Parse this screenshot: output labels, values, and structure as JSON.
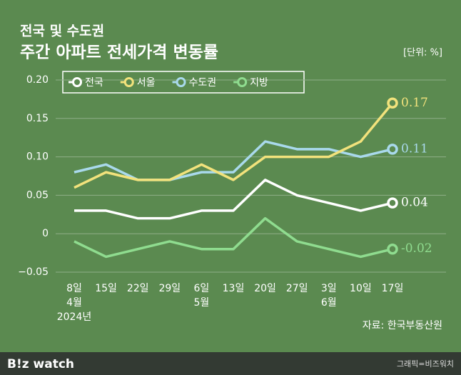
{
  "header": {
    "title_line1": "전국 및 수도권",
    "title_line2": "주간 아파트 전세가격 변동률",
    "unit": "[단위: %]"
  },
  "chart_data": {
    "type": "line",
    "categories": [
      [
        "8일",
        "4월",
        "2024년"
      ],
      [
        "15일"
      ],
      [
        "22일"
      ],
      [
        "29일"
      ],
      [
        "6일",
        "5월"
      ],
      [
        "13일"
      ],
      [
        "20일"
      ],
      [
        "27일"
      ],
      [
        "3일",
        "6월"
      ],
      [
        "10일"
      ],
      [
        "17일"
      ]
    ],
    "series": [
      {
        "name": "전국",
        "color": "#ffffff",
        "values": [
          0.03,
          0.03,
          0.02,
          0.02,
          0.03,
          0.03,
          0.07,
          0.05,
          0.04,
          0.03,
          0.04
        ]
      },
      {
        "name": "서울",
        "color": "#f2e27c",
        "values": [
          0.06,
          0.08,
          0.07,
          0.07,
          0.09,
          0.07,
          0.1,
          0.1,
          0.1,
          0.12,
          0.17
        ]
      },
      {
        "name": "수도권",
        "color": "#a9d9ec",
        "values": [
          0.08,
          0.09,
          0.07,
          0.07,
          0.08,
          0.08,
          0.12,
          0.11,
          0.11,
          0.1,
          0.11
        ]
      },
      {
        "name": "지방",
        "color": "#8fdc8f",
        "values": [
          -0.01,
          -0.03,
          -0.02,
          -0.01,
          -0.02,
          -0.02,
          0.02,
          -0.01,
          -0.02,
          -0.03,
          -0.02
        ]
      }
    ],
    "ylim": [
      -0.05,
      0.2
    ],
    "yticks": [
      {
        "value": 0.2,
        "label": "0.20"
      },
      0.15,
      {
        "value": 0.1,
        "label": "0.10"
      },
      0.05,
      0,
      {
        "value": -0.05,
        "label": "−0.05"
      }
    ],
    "grid": true,
    "legend": "top-left"
  },
  "source": "자료: 한국부동산원",
  "footer": {
    "logo": "B!z watch",
    "credit": "그래픽=비즈워치"
  }
}
